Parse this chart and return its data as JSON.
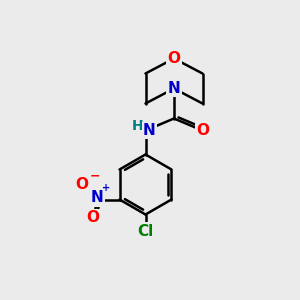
{
  "bg_color": "#ebebeb",
  "bond_color": "#000000",
  "bond_width": 1.8,
  "atom_colors": {
    "O": "#ff0000",
    "N": "#0000cc",
    "N_amide": "#0000cc",
    "H": "#008080",
    "Cl": "#008000",
    "C": "#000000",
    "NO2_N": "#0000cc",
    "NO2_O": "#ff0000"
  },
  "font_size_atoms": 11,
  "font_size_H": 10
}
